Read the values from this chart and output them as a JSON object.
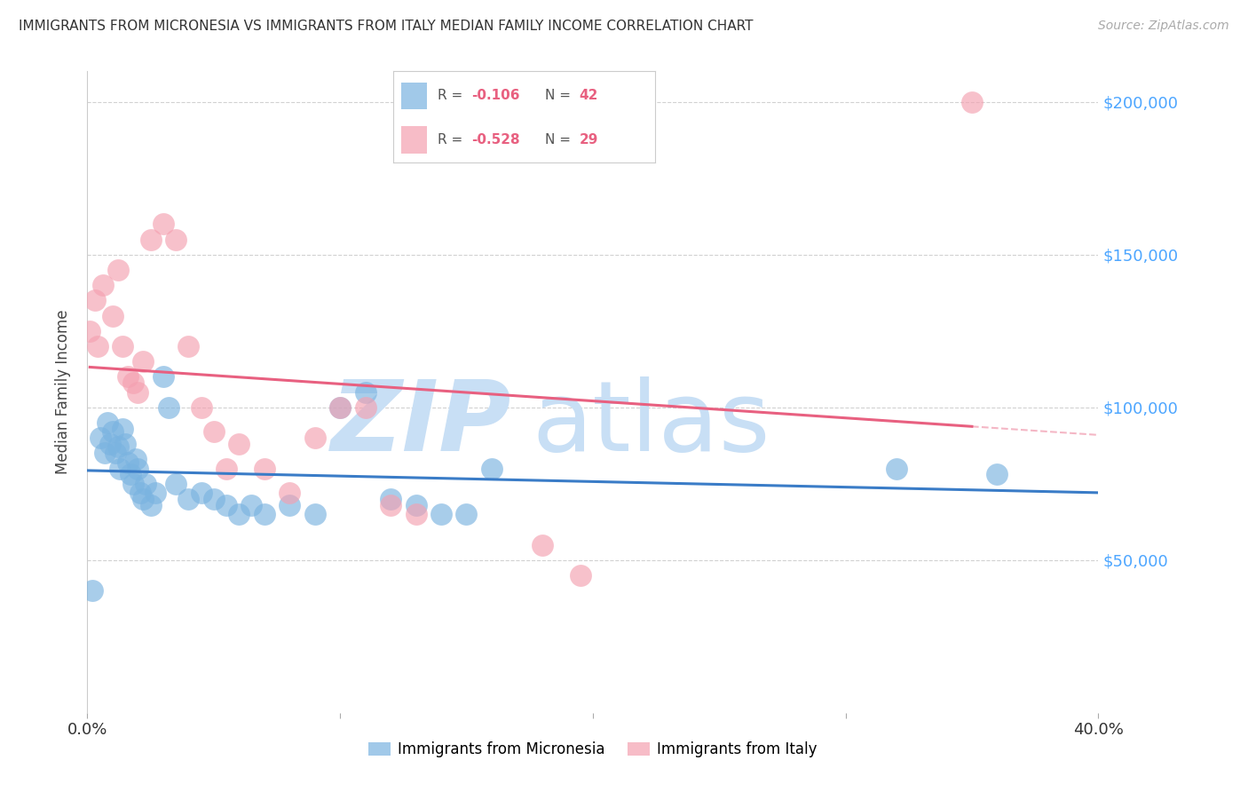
{
  "title": "IMMIGRANTS FROM MICRONESIA VS IMMIGRANTS FROM ITALY MEDIAN FAMILY INCOME CORRELATION CHART",
  "source": "Source: ZipAtlas.com",
  "ylabel": "Median Family Income",
  "ytick_labels": [
    "$50,000",
    "$100,000",
    "$150,000",
    "$200,000"
  ],
  "ytick_values": [
    50000,
    100000,
    150000,
    200000
  ],
  "ytick_color": "#4da6ff",
  "legend_r1": "-0.106",
  "legend_n1": "42",
  "legend_r2": "-0.528",
  "legend_n2": "29",
  "color_blue": "#7ab3e0",
  "color_pink": "#f4a0b0",
  "line_color_blue": "#3a7cc7",
  "line_color_pink": "#e86080",
  "watermark_zip": "ZIP",
  "watermark_atlas": "atlas",
  "watermark_color": "#c8dff5",
  "micronesia_x": [
    0.2,
    0.5,
    0.7,
    0.8,
    0.9,
    1.0,
    1.1,
    1.2,
    1.3,
    1.4,
    1.5,
    1.6,
    1.7,
    1.8,
    1.9,
    2.0,
    2.1,
    2.2,
    2.3,
    2.5,
    2.7,
    3.0,
    3.2,
    3.5,
    4.0,
    4.5,
    5.0,
    5.5,
    6.0,
    6.5,
    7.0,
    8.0,
    9.0,
    10.0,
    11.0,
    12.0,
    13.0,
    14.0,
    15.0,
    16.0,
    32.0,
    36.0
  ],
  "micronesia_y": [
    40000,
    90000,
    85000,
    95000,
    88000,
    92000,
    85000,
    87000,
    80000,
    93000,
    88000,
    82000,
    78000,
    75000,
    83000,
    80000,
    72000,
    70000,
    75000,
    68000,
    72000,
    110000,
    100000,
    75000,
    70000,
    72000,
    70000,
    68000,
    65000,
    68000,
    65000,
    68000,
    65000,
    100000,
    105000,
    70000,
    68000,
    65000,
    65000,
    80000,
    80000,
    78000
  ],
  "italy_x": [
    0.1,
    0.3,
    0.4,
    0.6,
    1.0,
    1.2,
    1.4,
    1.6,
    1.8,
    2.0,
    2.2,
    2.5,
    3.0,
    3.5,
    4.0,
    4.5,
    5.0,
    5.5,
    6.0,
    7.0,
    8.0,
    9.0,
    10.0,
    11.0,
    12.0,
    13.0,
    18.0,
    19.5,
    35.0
  ],
  "italy_y": [
    125000,
    135000,
    120000,
    140000,
    130000,
    145000,
    120000,
    110000,
    108000,
    105000,
    115000,
    155000,
    160000,
    155000,
    120000,
    100000,
    92000,
    80000,
    88000,
    80000,
    72000,
    90000,
    100000,
    100000,
    68000,
    65000,
    55000,
    45000,
    200000
  ],
  "xmin": 0.0,
  "xmax": 40.0,
  "ymin": 0,
  "ymax": 210000,
  "grid_color": "#cccccc",
  "background_color": "#ffffff"
}
